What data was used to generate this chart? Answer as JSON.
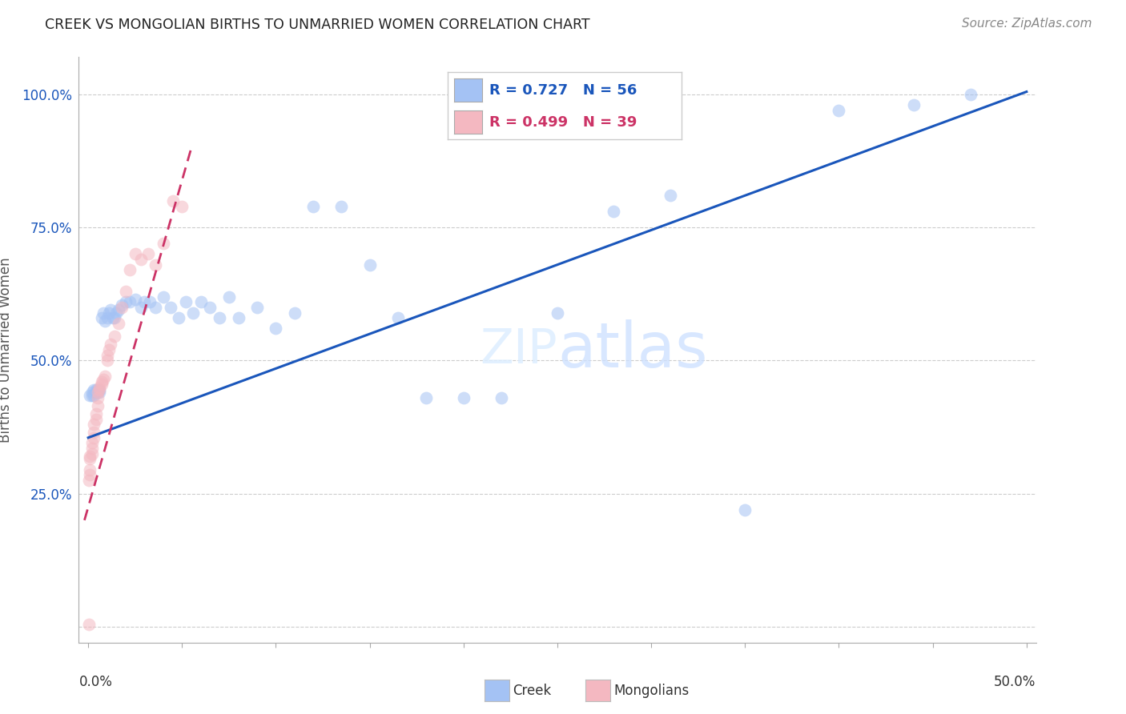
{
  "title": "CREEK VS MONGOLIAN BIRTHS TO UNMARRIED WOMEN CORRELATION CHART",
  "source": "Source: ZipAtlas.com",
  "ylabel": "Births to Unmarried Women",
  "yticks": [
    0.0,
    0.25,
    0.5,
    0.75,
    1.0
  ],
  "ytick_labels": [
    "",
    "25.0%",
    "50.0%",
    "75.0%",
    "100.0%"
  ],
  "creek_color": "#a4c2f4",
  "mongolian_color": "#f4b8c1",
  "creek_line_color": "#1a56bb",
  "mongolian_line_color": "#cc3366",
  "legend_creek": "Creek",
  "legend_mongolian": "Mongolians",
  "legend_creek_R": "R = 0.727",
  "legend_creek_N": "N = 56",
  "legend_mongolian_R": "R = 0.499",
  "legend_mongolian_N": "N = 39",
  "creek_scatter_x": [
    0.001,
    0.002,
    0.002,
    0.003,
    0.003,
    0.004,
    0.004,
    0.005,
    0.005,
    0.006,
    0.006,
    0.007,
    0.008,
    0.009,
    0.01,
    0.011,
    0.012,
    0.013,
    0.014,
    0.015,
    0.016,
    0.018,
    0.02,
    0.022,
    0.025,
    0.028,
    0.03,
    0.033,
    0.036,
    0.04,
    0.044,
    0.048,
    0.052,
    0.056,
    0.06,
    0.065,
    0.07,
    0.075,
    0.08,
    0.09,
    0.1,
    0.11,
    0.12,
    0.135,
    0.15,
    0.165,
    0.18,
    0.2,
    0.22,
    0.25,
    0.28,
    0.31,
    0.35,
    0.4,
    0.44,
    0.47
  ],
  "creek_scatter_y": [
    0.435,
    0.44,
    0.435,
    0.445,
    0.435,
    0.445,
    0.44,
    0.44,
    0.445,
    0.44,
    0.445,
    0.58,
    0.59,
    0.575,
    0.58,
    0.59,
    0.595,
    0.58,
    0.58,
    0.59,
    0.595,
    0.605,
    0.61,
    0.61,
    0.615,
    0.6,
    0.61,
    0.61,
    0.6,
    0.62,
    0.6,
    0.58,
    0.61,
    0.59,
    0.61,
    0.6,
    0.58,
    0.62,
    0.58,
    0.6,
    0.56,
    0.59,
    0.79,
    0.79,
    0.68,
    0.58,
    0.43,
    0.43,
    0.43,
    0.59,
    0.78,
    0.81,
    0.22,
    0.97,
    0.98,
    1.0
  ],
  "mongolian_scatter_x": [
    0.0003,
    0.0005,
    0.0008,
    0.001,
    0.001,
    0.001,
    0.002,
    0.002,
    0.002,
    0.003,
    0.003,
    0.003,
    0.004,
    0.004,
    0.005,
    0.005,
    0.005,
    0.006,
    0.006,
    0.007,
    0.007,
    0.008,
    0.009,
    0.01,
    0.01,
    0.011,
    0.012,
    0.014,
    0.016,
    0.018,
    0.02,
    0.022,
    0.025,
    0.028,
    0.032,
    0.036,
    0.04,
    0.045,
    0.05
  ],
  "mongolian_scatter_y": [
    0.005,
    0.275,
    0.285,
    0.295,
    0.315,
    0.32,
    0.325,
    0.335,
    0.345,
    0.355,
    0.365,
    0.38,
    0.39,
    0.4,
    0.415,
    0.43,
    0.44,
    0.45,
    0.445,
    0.455,
    0.46,
    0.465,
    0.47,
    0.5,
    0.51,
    0.52,
    0.53,
    0.545,
    0.57,
    0.6,
    0.63,
    0.67,
    0.7,
    0.69,
    0.7,
    0.68,
    0.72,
    0.8,
    0.79
  ],
  "creek_line_x": [
    0.0,
    0.5
  ],
  "creek_line_y": [
    0.355,
    1.005
  ],
  "mongolian_line_x": [
    -0.002,
    0.055
  ],
  "mongolian_line_y": [
    0.2,
    0.9
  ],
  "background_color": "#ffffff",
  "grid_color": "#cccccc",
  "marker_size": 130,
  "marker_alpha": 0.55,
  "xlim": [
    -0.005,
    0.505
  ],
  "ylim": [
    -0.03,
    1.07
  ]
}
